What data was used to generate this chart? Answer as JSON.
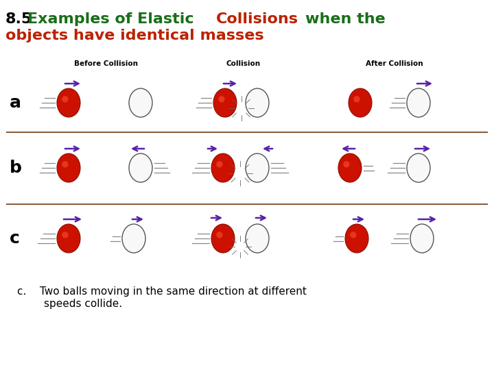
{
  "bg_color": "#ffffff",
  "red_ball_color": "#cc1100",
  "white_ball_fill": "#f8f8f8",
  "white_ball_edge": "#555555",
  "arrow_color": "#5522aa",
  "motion_line_color": "#888888",
  "separator_color": "#8B5E3C",
  "title_8_5_color": "#000000",
  "title_green_color": "#1a6e1a",
  "title_red_color": "#bb2200",
  "col_label_color": "#000000",
  "row_label_color": "#000000",
  "caption_color": "#000000",
  "col_labels": [
    "Before Collision",
    "Collision",
    "After Collision"
  ],
  "row_labels": [
    "a",
    "b",
    "c"
  ],
  "caption_text1": "c.    Two balls moving in the same direction at different",
  "caption_text2": "        speeds collide."
}
